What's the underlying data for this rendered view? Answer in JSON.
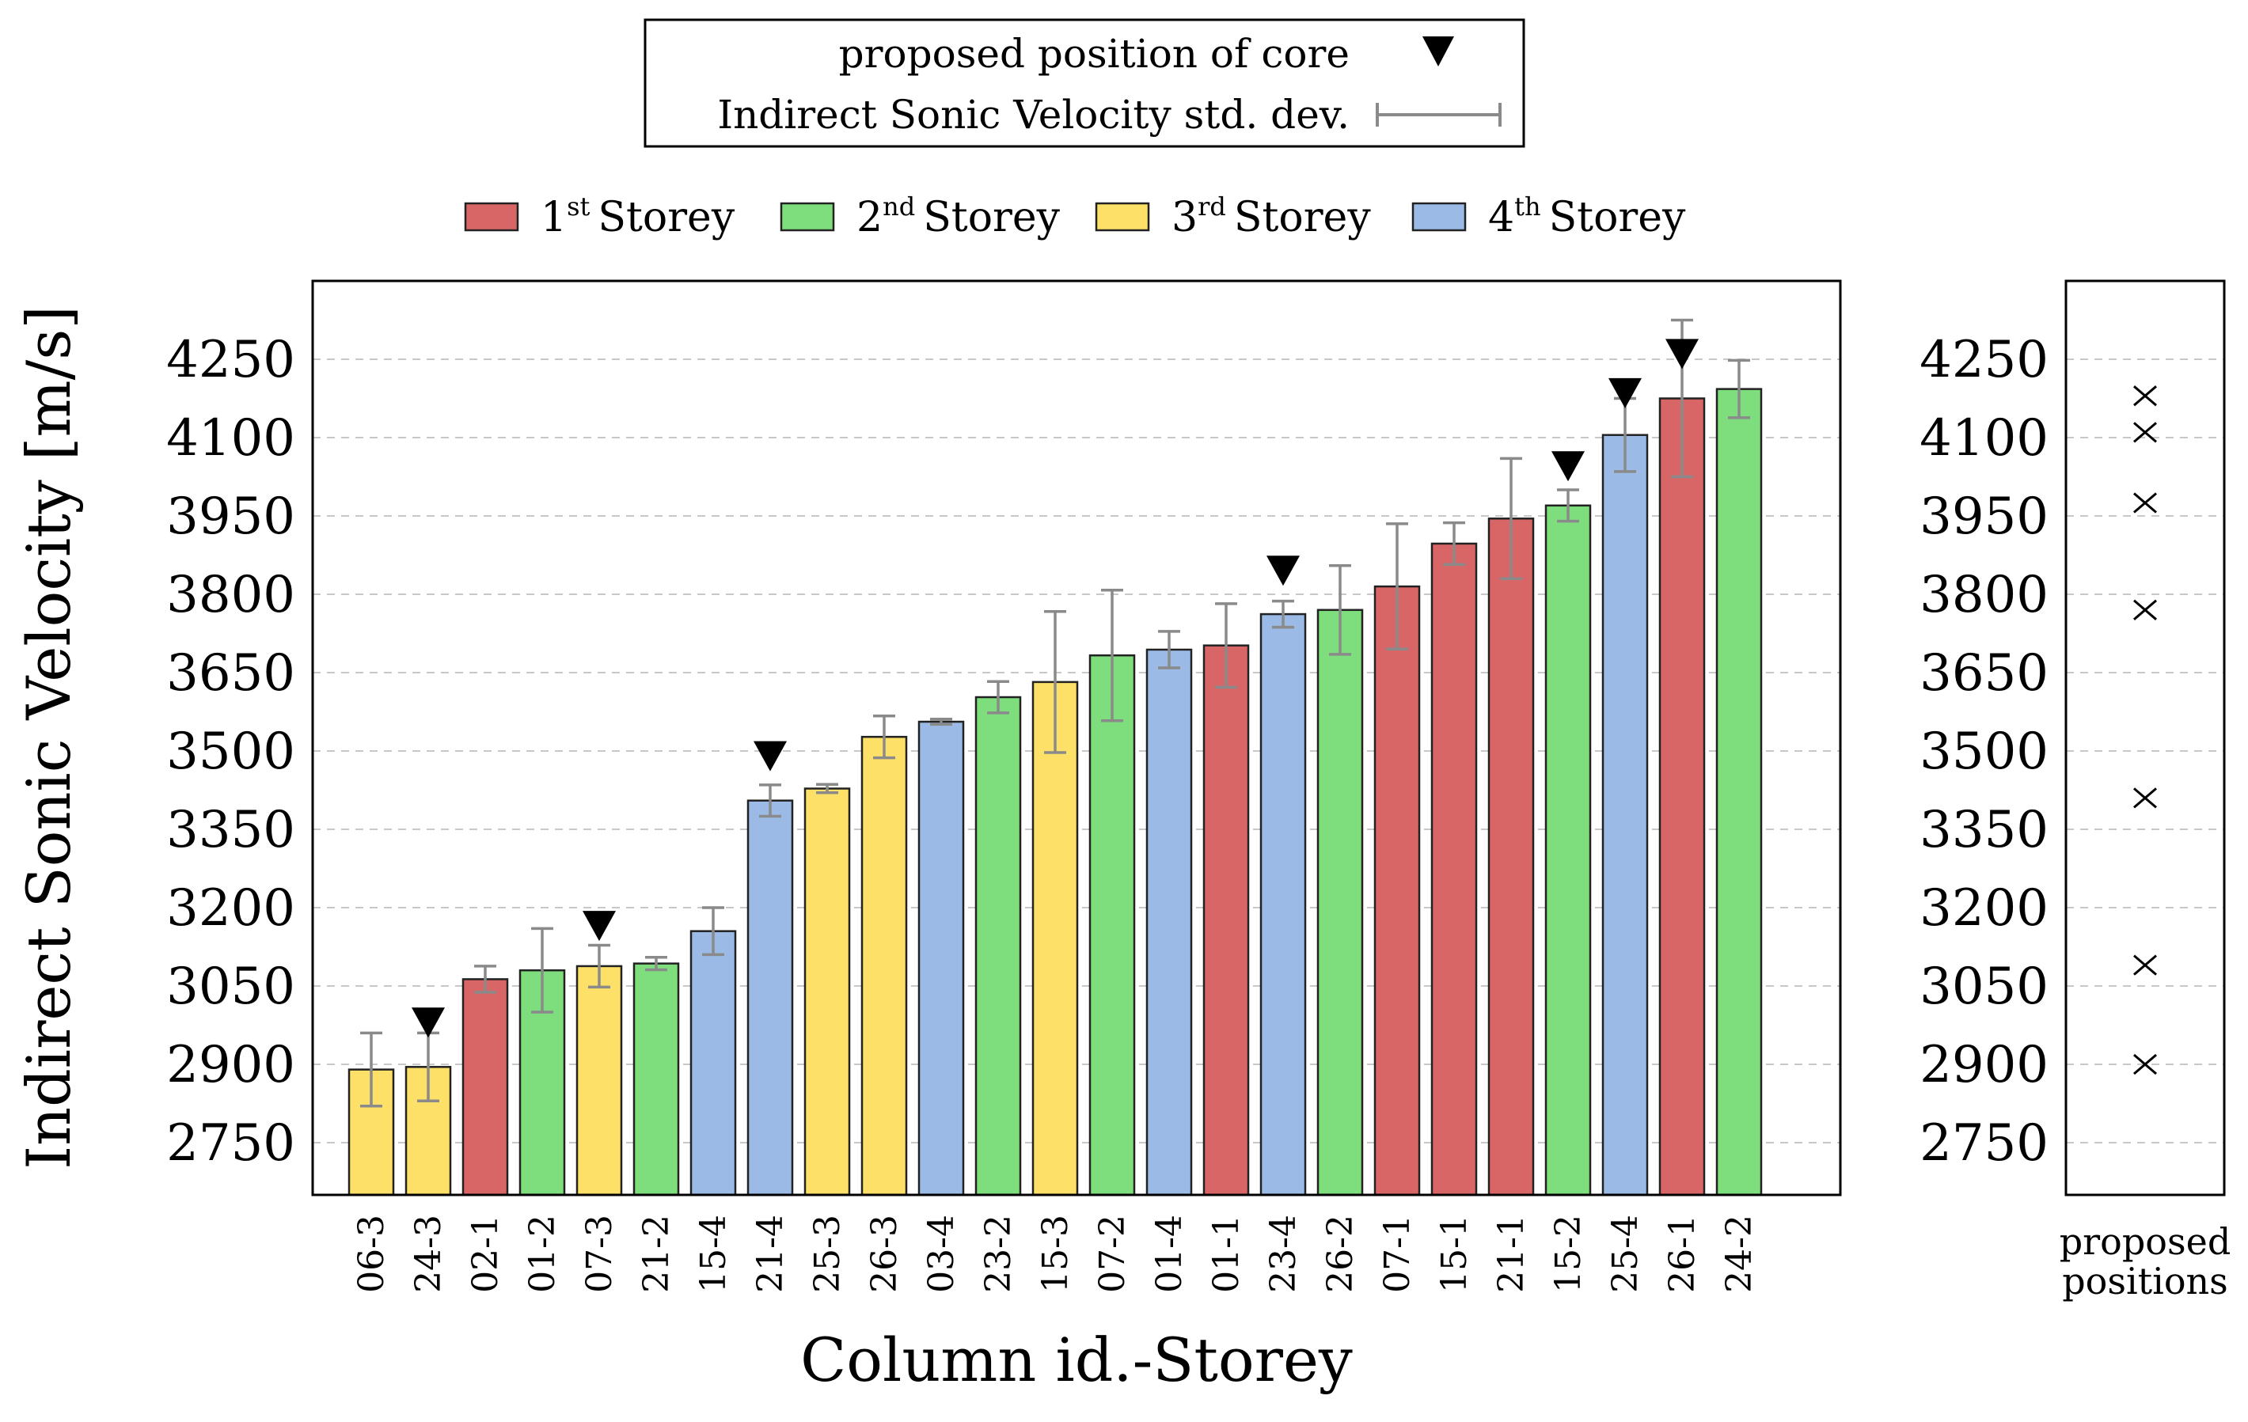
{
  "chart_data": [
    {
      "type": "bar",
      "title": "",
      "xlabel": "Column id.-Storey",
      "ylabel": "Indirect Sonic Velocity [m/s]",
      "ylim": [
        2650,
        4400
      ],
      "yticks": [
        2750,
        2900,
        3050,
        3200,
        3350,
        3500,
        3650,
        3800,
        3950,
        4100,
        4250
      ],
      "grid": "horizontal dashed",
      "categories": [
        "06-3",
        "24-3",
        "02-1",
        "01-2",
        "07-3",
        "21-2",
        "15-4",
        "21-4",
        "25-3",
        "26-3",
        "03-4",
        "23-2",
        "15-3",
        "07-2",
        "01-4",
        "01-1",
        "23-4",
        "26-2",
        "07-1",
        "15-1",
        "21-1",
        "15-2",
        "25-4",
        "26-1",
        "24-2"
      ],
      "values": [
        2890,
        2895,
        3063,
        3080,
        3088,
        3093,
        3155,
        3405,
        3428,
        3527,
        3556,
        3603,
        3632,
        3683,
        3694,
        3702,
        3762,
        3770,
        3815,
        3897,
        3945,
        3970,
        4105,
        4175,
        4193
      ],
      "std_dev": [
        70,
        65,
        25,
        80,
        40,
        12,
        45,
        30,
        8,
        40,
        5,
        30,
        135,
        125,
        35,
        80,
        25,
        85,
        120,
        40,
        115,
        30,
        70,
        150,
        55
      ],
      "storey": [
        3,
        3,
        1,
        2,
        3,
        2,
        4,
        4,
        3,
        3,
        4,
        2,
        3,
        2,
        4,
        1,
        4,
        2,
        1,
        1,
        1,
        2,
        4,
        1,
        2
      ],
      "core_positions": [
        {
          "category": "24-3",
          "y": 2980
        },
        {
          "category": "07-3",
          "y": 3165
        },
        {
          "category": "21-4",
          "y": 3490
        },
        {
          "category": "23-4",
          "y": 3845
        },
        {
          "category": "15-2",
          "y": 4045
        },
        {
          "category": "25-4",
          "y": 4185
        },
        {
          "category": "26-1",
          "y": 4260
        }
      ],
      "series_legend": [
        {
          "storey": 1,
          "ord": "1",
          "sup": "st",
          "label": "Storey",
          "color": "#d96666"
        },
        {
          "storey": 2,
          "ord": "2",
          "sup": "nd",
          "label": "Storey",
          "color": "#7ede7e"
        },
        {
          "storey": 3,
          "ord": "3",
          "sup": "rd",
          "label": "Storey",
          "color": "#fde068"
        },
        {
          "storey": 4,
          "ord": "4",
          "sup": "th",
          "label": "Storey",
          "color": "#9bbbe6"
        }
      ],
      "marker_legend": [
        {
          "label": "proposed position of core",
          "symbol": "filled-down-triangle"
        },
        {
          "label": "Indirect Sonic Velocity std. dev.",
          "symbol": "error-bar"
        }
      ]
    },
    {
      "type": "scatter",
      "title": "",
      "xlabel": "proposed positions",
      "xlabel_lines": [
        "proposed",
        "positions"
      ],
      "ylim": [
        2650,
        4400
      ],
      "yticks": [
        2750,
        2900,
        3050,
        3200,
        3350,
        3500,
        3650,
        3800,
        3950,
        4100,
        4250
      ],
      "marker": "x",
      "values": [
        2900,
        3090,
        3410,
        3770,
        3975,
        4110,
        4180
      ]
    }
  ],
  "colors": {
    "error_bar": "#8a8a8a",
    "grid": "#c8c8c8",
    "axis": "#000000",
    "bar_edge": "#222222"
  }
}
